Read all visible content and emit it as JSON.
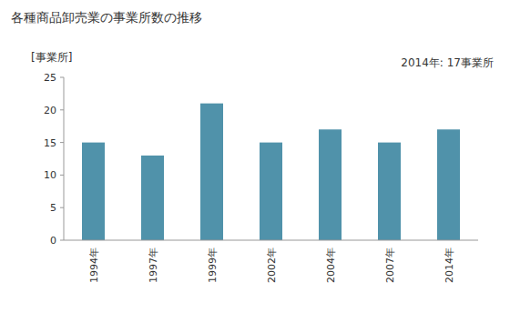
{
  "chart_data": {
    "type": "bar",
    "title": "各種商品卸売業の事業所数の推移",
    "y_label": "[事業所]",
    "annotation": "2014年: 17事業所",
    "categories": [
      "1994年",
      "1997年",
      "1999年",
      "2002年",
      "2004年",
      "2007年",
      "2014年"
    ],
    "values": [
      15,
      13,
      21,
      15,
      17,
      15,
      17
    ],
    "color": "#5092aa",
    "ylim": [
      0,
      25
    ],
    "yticks": [
      0,
      5,
      10,
      15,
      20,
      25
    ],
    "grid": false
  }
}
